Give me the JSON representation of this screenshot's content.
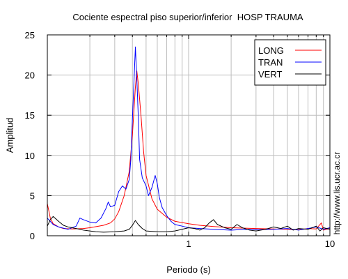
{
  "chart_data": {
    "type": "line",
    "title": "Cociente espectral piso superior/inferior  HOSP TRAUMA",
    "xlabel": "Periodo (s)",
    "ylabel": "Amplitud",
    "x_scale": "log",
    "xlim": [
      0.1,
      10
    ],
    "ylim": [
      0,
      25
    ],
    "xticks": [
      {
        "value": 1,
        "label": "1"
      },
      {
        "value": 10,
        "label": "10"
      }
    ],
    "yticks": [
      {
        "value": 0,
        "label": "0"
      },
      {
        "value": 5,
        "label": "5"
      },
      {
        "value": 10,
        "label": "10"
      },
      {
        "value": 15,
        "label": "15"
      },
      {
        "value": 20,
        "label": "20"
      },
      {
        "value": 25,
        "label": "25"
      }
    ],
    "grid": true,
    "legend_position": "top-right",
    "series": [
      {
        "name": "LONG",
        "color": "#ff0000",
        "points": [
          [
            0.1,
            4.0
          ],
          [
            0.105,
            2.2
          ],
          [
            0.11,
            1.5
          ],
          [
            0.12,
            1.1
          ],
          [
            0.13,
            0.9
          ],
          [
            0.15,
            0.85
          ],
          [
            0.18,
            0.9
          ],
          [
            0.2,
            1.0
          ],
          [
            0.25,
            1.3
          ],
          [
            0.28,
            1.6
          ],
          [
            0.3,
            2.1
          ],
          [
            0.32,
            3.0
          ],
          [
            0.35,
            5.0
          ],
          [
            0.38,
            8.0
          ],
          [
            0.4,
            12.5
          ],
          [
            0.42,
            18.5
          ],
          [
            0.43,
            20.5
          ],
          [
            0.44,
            19.0
          ],
          [
            0.46,
            15.0
          ],
          [
            0.48,
            10.5
          ],
          [
            0.5,
            7.5
          ],
          [
            0.55,
            4.6
          ],
          [
            0.6,
            3.3
          ],
          [
            0.7,
            2.3
          ],
          [
            0.8,
            1.8
          ],
          [
            1.0,
            1.5
          ],
          [
            1.2,
            1.3
          ],
          [
            1.5,
            1.15
          ],
          [
            2.0,
            1.0
          ],
          [
            3.0,
            0.9
          ],
          [
            4.0,
            0.85
          ],
          [
            5.0,
            0.8
          ],
          [
            6.0,
            0.75
          ],
          [
            7.0,
            0.9
          ],
          [
            8.0,
            0.85
          ],
          [
            8.7,
            1.6
          ],
          [
            9.0,
            0.7
          ],
          [
            10.0,
            0.9
          ]
        ]
      },
      {
        "name": "TRAN",
        "color": "#0000ff",
        "points": [
          [
            0.1,
            2.2
          ],
          [
            0.11,
            1.4
          ],
          [
            0.12,
            1.1
          ],
          [
            0.14,
            0.8
          ],
          [
            0.16,
            1.2
          ],
          [
            0.17,
            2.2
          ],
          [
            0.18,
            2.0
          ],
          [
            0.2,
            1.7
          ],
          [
            0.22,
            1.6
          ],
          [
            0.24,
            2.2
          ],
          [
            0.26,
            3.4
          ],
          [
            0.27,
            4.2
          ],
          [
            0.28,
            3.6
          ],
          [
            0.3,
            3.8
          ],
          [
            0.32,
            5.5
          ],
          [
            0.34,
            6.2
          ],
          [
            0.36,
            5.8
          ],
          [
            0.38,
            7.0
          ],
          [
            0.39,
            9.5
          ],
          [
            0.4,
            14.5
          ],
          [
            0.41,
            19.0
          ],
          [
            0.42,
            23.5
          ],
          [
            0.43,
            19.5
          ],
          [
            0.44,
            15.0
          ],
          [
            0.45,
            9.5
          ],
          [
            0.47,
            7.2
          ],
          [
            0.5,
            6.2
          ],
          [
            0.52,
            5.0
          ],
          [
            0.55,
            6.0
          ],
          [
            0.58,
            7.5
          ],
          [
            0.6,
            6.5
          ],
          [
            0.62,
            4.8
          ],
          [
            0.65,
            3.5
          ],
          [
            0.7,
            2.5
          ],
          [
            0.75,
            1.8
          ],
          [
            0.8,
            1.4
          ],
          [
            0.9,
            1.2
          ],
          [
            1.0,
            1.0
          ],
          [
            1.2,
            0.9
          ],
          [
            1.5,
            0.8
          ],
          [
            2.0,
            0.7
          ],
          [
            2.5,
            0.8
          ],
          [
            3.0,
            0.75
          ],
          [
            4.0,
            0.8
          ],
          [
            5.0,
            0.9
          ],
          [
            6.0,
            0.7
          ],
          [
            7.0,
            0.9
          ],
          [
            8.0,
            1.1
          ],
          [
            9.0,
            0.8
          ],
          [
            10.0,
            1.0
          ]
        ]
      },
      {
        "name": "VERT",
        "color": "#000000",
        "points": [
          [
            0.1,
            1.2
          ],
          [
            0.105,
            2.0
          ],
          [
            0.11,
            2.4
          ],
          [
            0.12,
            1.8
          ],
          [
            0.13,
            1.3
          ],
          [
            0.14,
            1.1
          ],
          [
            0.16,
            0.9
          ],
          [
            0.18,
            0.7
          ],
          [
            0.2,
            0.6
          ],
          [
            0.22,
            0.5
          ],
          [
            0.25,
            0.45
          ],
          [
            0.3,
            0.5
          ],
          [
            0.35,
            0.6
          ],
          [
            0.38,
            0.8
          ],
          [
            0.4,
            1.3
          ],
          [
            0.42,
            1.9
          ],
          [
            0.44,
            1.4
          ],
          [
            0.47,
            0.9
          ],
          [
            0.5,
            0.6
          ],
          [
            0.6,
            0.5
          ],
          [
            0.7,
            0.5
          ],
          [
            0.8,
            0.6
          ],
          [
            0.9,
            0.8
          ],
          [
            1.0,
            1.0
          ],
          [
            1.1,
            0.9
          ],
          [
            1.2,
            0.7
          ],
          [
            1.3,
            1.0
          ],
          [
            1.4,
            1.6
          ],
          [
            1.5,
            2.0
          ],
          [
            1.6,
            1.4
          ],
          [
            1.8,
            1.0
          ],
          [
            2.0,
            0.8
          ],
          [
            2.2,
            1.4
          ],
          [
            2.4,
            1.0
          ],
          [
            2.7,
            0.7
          ],
          [
            3.0,
            0.6
          ],
          [
            3.5,
            0.8
          ],
          [
            4.0,
            1.1
          ],
          [
            4.5,
            0.9
          ],
          [
            5.0,
            1.2
          ],
          [
            5.5,
            0.7
          ],
          [
            6.0,
            0.9
          ],
          [
            7.0,
            0.8
          ],
          [
            8.0,
            1.2
          ],
          [
            8.5,
            0.6
          ],
          [
            9.0,
            1.0
          ],
          [
            10.0,
            0.8
          ]
        ]
      }
    ]
  },
  "side_text": "http://www.lis.ucr.ac.cr"
}
